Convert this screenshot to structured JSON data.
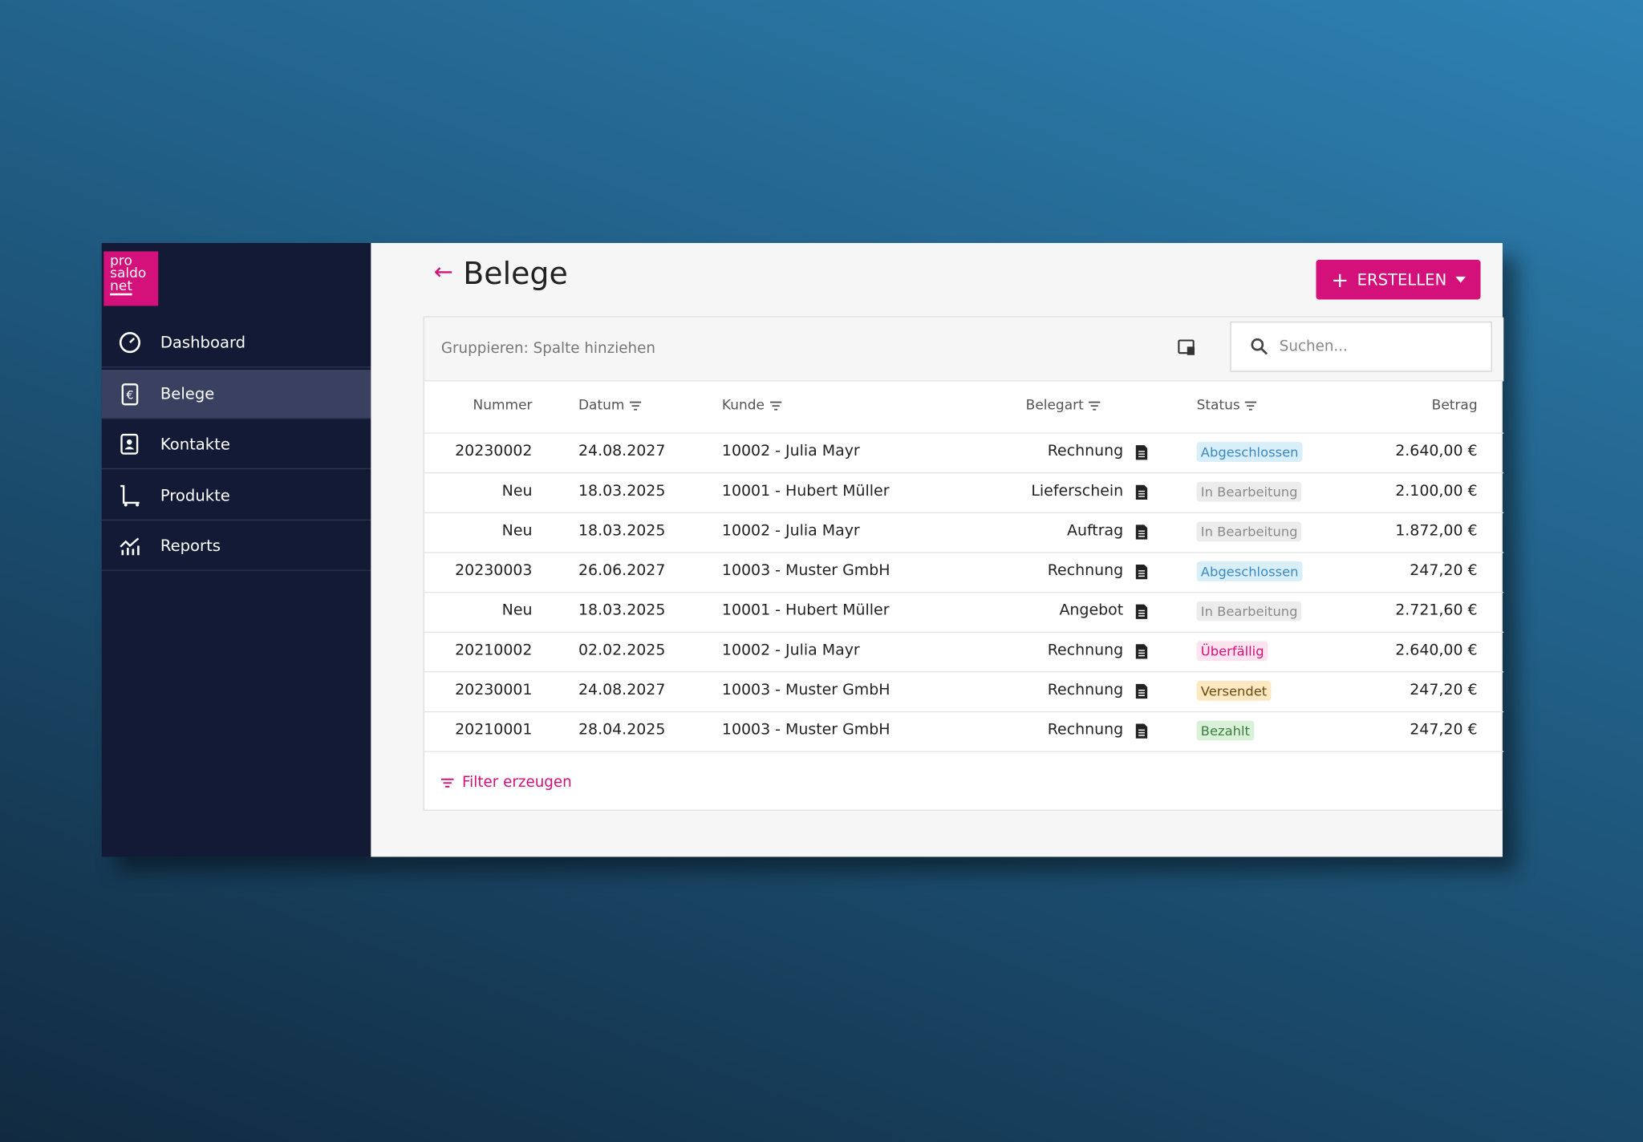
{
  "logo": [
    "pro",
    "saldo",
    "net"
  ],
  "nav": [
    "Dashboard",
    "Belege",
    "Kontakte",
    "Produkte",
    "Reports"
  ],
  "header": {
    "back": "←",
    "title": "Belege",
    "button": "ERSTELLEN"
  },
  "toolbar": {
    "group_hint": "Gruppieren: Spalte hinziehen",
    "search_placeholder": "Suchen..."
  },
  "table": {
    "columns": [
      "Nummer",
      "Datum",
      "Kunde",
      "Belegart",
      "Status",
      "Betrag"
    ],
    "rows": [
      [
        "20230002",
        "24.08.2027",
        "10002 - Julia Mayr",
        "Rechnung",
        "Abgeschlossen",
        "2.640,00 €"
      ],
      [
        "Neu",
        "18.03.2025",
        "10001 - Hubert Müller",
        "Lieferschein",
        "In Bearbeitung",
        "2.100,00 €"
      ],
      [
        "Neu",
        "18.03.2025",
        "10002 - Julia Mayr",
        "Auftrag",
        "In Bearbeitung",
        "1.872,00 €"
      ],
      [
        "20230003",
        "26.06.2027",
        "10003 - Muster GmbH",
        "Rechnung",
        "Abgeschlossen",
        "247,20 €"
      ],
      [
        "Neu",
        "18.03.2025",
        "10001 - Hubert Müller",
        "Angebot",
        "In Bearbeitung",
        "2.721,60 €"
      ],
      [
        "20210002",
        "02.02.2025",
        "10002 - Julia Mayr",
        "Rechnung",
        "Überfällig",
        "2.640,00 €"
      ],
      [
        "20230001",
        "24.08.2027",
        "10003 - Muster GmbH",
        "Rechnung",
        "Versendet",
        "247,20 €"
      ],
      [
        "20210001",
        "28.04.2025",
        "10003 - Muster GmbH",
        "Rechnung",
        "Bezahlt",
        "247,20 €"
      ]
    ]
  },
  "footer": {
    "filter": "Filter erzeugen"
  }
}
